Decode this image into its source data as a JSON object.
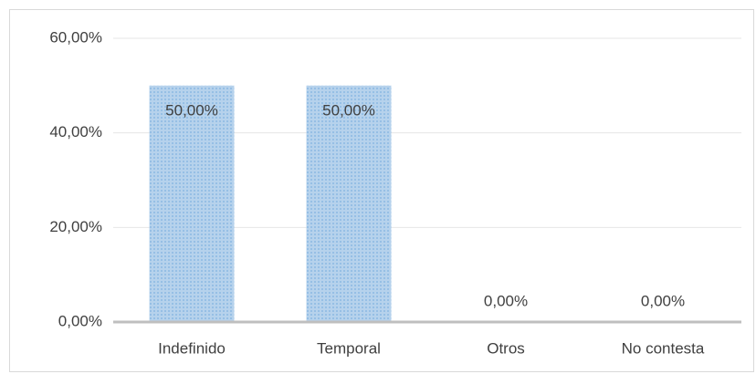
{
  "chart_data": {
    "type": "bar",
    "categories": [
      "Indefinido",
      "Temporal",
      "Otros",
      "No contesta"
    ],
    "values": [
      50,
      50,
      0,
      0
    ],
    "value_labels": [
      "50,00%",
      "50,00%",
      "0,00%",
      "0,00%"
    ],
    "color": "#9dc3e6",
    "ylim": [
      0,
      60
    ],
    "yticks": [
      {
        "value": 0,
        "label": "0,00%"
      },
      {
        "value": 20,
        "label": "20,00%"
      },
      {
        "value": 40,
        "label": "40,00%"
      },
      {
        "value": 60,
        "label": "60,00%"
      }
    ],
    "grid": true
  }
}
